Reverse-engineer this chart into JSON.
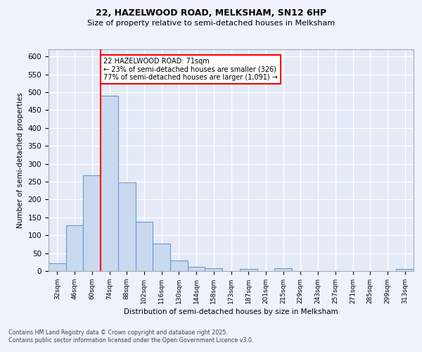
{
  "title1": "22, HAZELWOOD ROAD, MELKSHAM, SN12 6HP",
  "title2": "Size of property relative to semi-detached houses in Melksham",
  "xlabel": "Distribution of semi-detached houses by size in Melksham",
  "ylabel": "Number of semi-detached properties",
  "categories": [
    "32sqm",
    "46sqm",
    "60sqm",
    "74sqm",
    "88sqm",
    "102sqm",
    "116sqm",
    "130sqm",
    "144sqm",
    "158sqm",
    "173sqm",
    "187sqm",
    "201sqm",
    "215sqm",
    "229sqm",
    "243sqm",
    "257sqm",
    "271sqm",
    "285sqm",
    "299sqm",
    "313sqm"
  ],
  "values": [
    22,
    127,
    267,
    490,
    248,
    138,
    77,
    30,
    11,
    7,
    0,
    6,
    0,
    7,
    0,
    0,
    0,
    0,
    0,
    0,
    5
  ],
  "bar_color": "#c9d9ef",
  "bar_edge_color": "#6090c8",
  "vline_color": "red",
  "vline_x": 2.5,
  "annotation_text": "22 HAZELWOOD ROAD: 71sqm\n← 23% of semi-detached houses are smaller (326)\n77% of semi-detached houses are larger (1,091) →",
  "annotation_box_color": "white",
  "annotation_box_edge": "red",
  "ylim": [
    0,
    620
  ],
  "yticks": [
    0,
    50,
    100,
    150,
    200,
    250,
    300,
    350,
    400,
    450,
    500,
    550,
    600
  ],
  "footer": "Contains HM Land Registry data © Crown copyright and database right 2025.\nContains public sector information licensed under the Open Government Licence v3.0.",
  "bg_color": "#eef2fb",
  "plot_bg_color": "#e4eaf6",
  "grid_color": "white"
}
